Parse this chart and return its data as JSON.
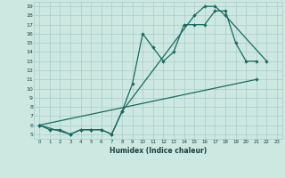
{
  "xlabel": "Humidex (Indice chaleur)",
  "bg_color": "#cce8e0",
  "grid_color": "#aacccc",
  "line_color": "#1a6b60",
  "xlim": [
    -0.5,
    23.5
  ],
  "ylim": [
    4.5,
    19.5
  ],
  "xticks": [
    0,
    1,
    2,
    3,
    4,
    5,
    6,
    7,
    8,
    9,
    10,
    11,
    12,
    13,
    14,
    15,
    16,
    17,
    18,
    19,
    20,
    21,
    22,
    23
  ],
  "yticks": [
    5,
    6,
    7,
    8,
    9,
    10,
    11,
    12,
    13,
    14,
    15,
    16,
    17,
    18,
    19
  ],
  "line1_x": [
    0,
    1,
    2,
    3,
    4,
    5,
    6,
    7,
    8,
    9,
    10,
    11,
    12,
    13,
    14,
    15,
    16,
    17,
    18,
    19,
    20,
    21
  ],
  "line1_y": [
    6,
    5.5,
    5.5,
    5,
    5.5,
    5.5,
    5.5,
    5,
    7.5,
    10.5,
    16,
    14.5,
    13,
    14,
    17,
    17,
    17,
    18.5,
    18.5,
    15,
    13,
    13
  ],
  "line2_x": [
    0,
    3,
    4,
    5,
    6,
    7,
    8,
    15,
    16,
    17,
    18,
    22
  ],
  "line2_y": [
    6,
    5,
    5.5,
    5.5,
    5.5,
    5,
    7.5,
    18,
    19,
    19,
    18,
    13
  ],
  "line3_x": [
    0,
    21
  ],
  "line3_y": [
    6,
    11
  ]
}
